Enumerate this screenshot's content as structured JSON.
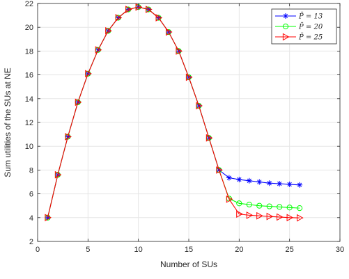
{
  "chart_data": {
    "type": "line",
    "title": "",
    "xlabel": "Number of SUs",
    "ylabel": "Sum utilities of the SUs at NE",
    "xlim": [
      0,
      30
    ],
    "ylim": [
      2,
      22
    ],
    "xticks": [
      0,
      5,
      10,
      15,
      20,
      25,
      30
    ],
    "yticks": [
      2,
      4,
      6,
      8,
      10,
      12,
      14,
      16,
      18,
      20,
      22
    ],
    "grid": true,
    "legend_position": "top-right",
    "x": [
      1,
      2,
      3,
      4,
      5,
      6,
      7,
      8,
      9,
      10,
      11,
      12,
      13,
      14,
      15,
      16,
      17,
      18,
      19,
      20,
      21,
      22,
      23,
      24,
      25,
      26
    ],
    "series": [
      {
        "name": "P̄ = 13",
        "color": "#0000ff",
        "marker": "asterisk",
        "values": [
          4.0,
          7.6,
          10.8,
          13.7,
          16.1,
          18.1,
          19.7,
          20.8,
          21.5,
          21.7,
          21.5,
          20.8,
          19.6,
          18.0,
          15.8,
          13.4,
          10.7,
          8.0,
          7.35,
          7.2,
          7.1,
          7.0,
          6.9,
          6.85,
          6.8,
          6.75
        ]
      },
      {
        "name": "P̄ = 20",
        "color": "#00ff00",
        "marker": "circle",
        "values": [
          4.0,
          7.6,
          10.8,
          13.7,
          16.1,
          18.1,
          19.7,
          20.8,
          21.5,
          21.7,
          21.5,
          20.8,
          19.6,
          18.0,
          15.8,
          13.4,
          10.7,
          8.0,
          5.6,
          5.2,
          5.1,
          5.0,
          4.95,
          4.9,
          4.85,
          4.8
        ]
      },
      {
        "name": "P̄ = 25",
        "color": "#ff0000",
        "marker": "triangle-right",
        "values": [
          4.0,
          7.6,
          10.8,
          13.7,
          16.1,
          18.1,
          19.7,
          20.8,
          21.5,
          21.7,
          21.5,
          20.8,
          19.6,
          18.0,
          15.8,
          13.4,
          10.7,
          8.0,
          5.55,
          4.3,
          4.2,
          4.15,
          4.1,
          4.05,
          4.0,
          3.98
        ]
      }
    ]
  }
}
